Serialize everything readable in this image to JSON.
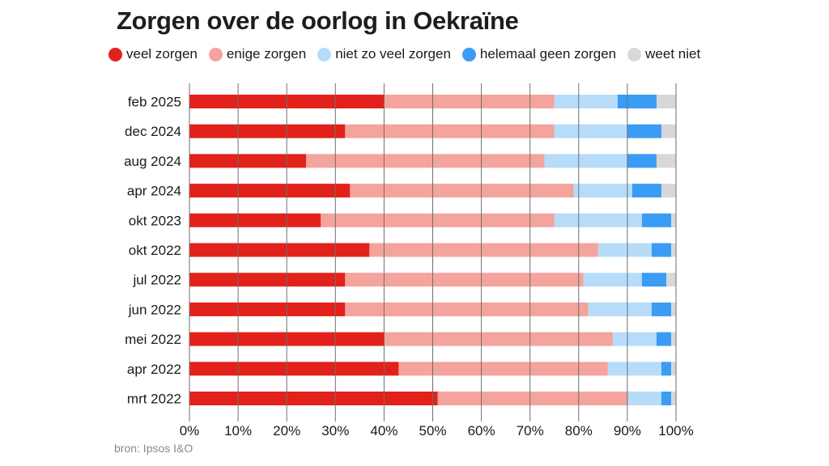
{
  "chart_data": {
    "type": "bar",
    "orientation": "horizontal",
    "stacked": true,
    "title": "Zorgen over de oorlog in Oekraïne",
    "xlabel": "",
    "ylabel": "",
    "xlim": [
      0,
      100
    ],
    "x_ticks": [
      "0%",
      "10%",
      "20%",
      "30%",
      "40%",
      "50%",
      "60%",
      "70%",
      "80%",
      "90%",
      "100%"
    ],
    "grid": true,
    "legend_position": "top",
    "categories": [
      "feb 2025",
      "dec 2024",
      "aug 2024",
      "apr 2024",
      "okt 2023",
      "okt 2022",
      "jul 2022",
      "jun 2022",
      "mei 2022",
      "apr 2022",
      "mrt 2022"
    ],
    "series": [
      {
        "name": "veel zorgen",
        "color": "#e3211b",
        "values": [
          40,
          32,
          24,
          33,
          27,
          37,
          32,
          32,
          40,
          43,
          51
        ]
      },
      {
        "name": "enige zorgen",
        "color": "#f4a39d",
        "values": [
          35,
          43,
          49,
          46,
          48,
          47,
          49,
          50,
          47,
          43,
          39
        ]
      },
      {
        "name": "niet zo veel zorgen",
        "color": "#b7dcfa",
        "values": [
          13,
          15,
          17,
          12,
          18,
          11,
          12,
          13,
          9,
          11,
          7
        ]
      },
      {
        "name": "helemaal geen zorgen",
        "color": "#3a9cf5",
        "values": [
          8,
          7,
          6,
          6,
          6,
          4,
          5,
          4,
          3,
          2,
          2
        ]
      },
      {
        "name": "weet niet",
        "color": "#d8d8d8",
        "values": [
          4,
          3,
          4,
          3,
          1,
          1,
          2,
          1,
          1,
          1,
          1
        ]
      }
    ],
    "source": "bron: Ipsos I&O"
  }
}
